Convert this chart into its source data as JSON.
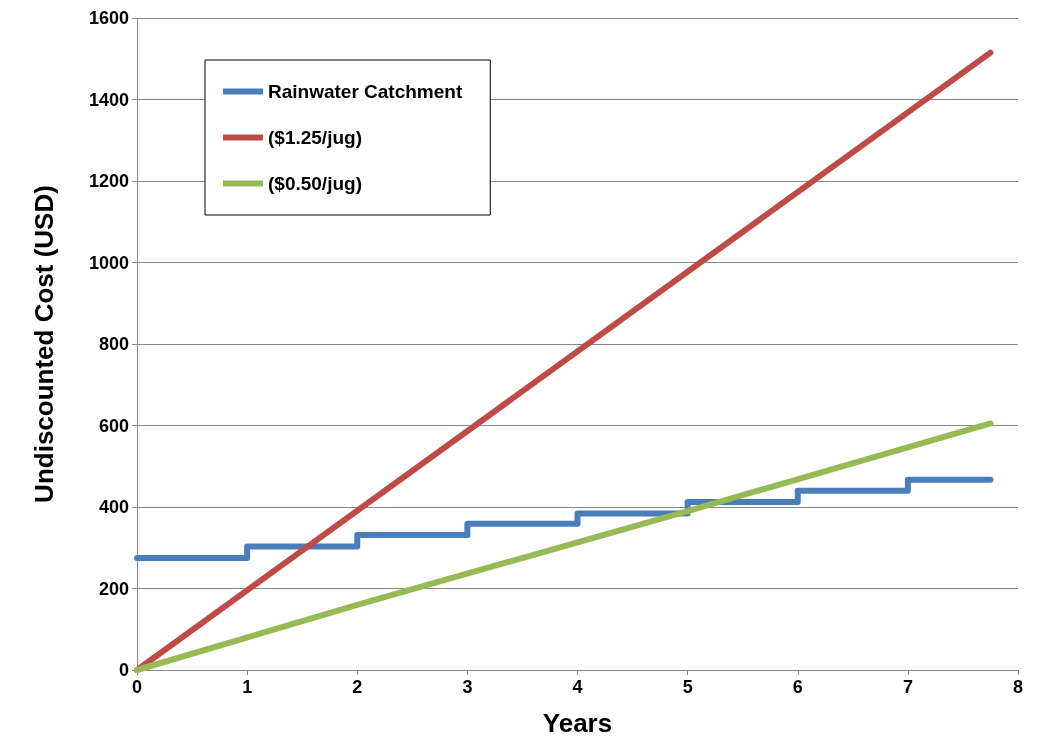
{
  "chart_data": {
    "type": "line",
    "xlabel": "Years",
    "ylabel": "Undiscounted Cost (USD)",
    "xlim": [
      0,
      8
    ],
    "xticks": [
      0,
      1,
      2,
      3,
      4,
      5,
      6,
      7,
      8
    ],
    "ylim": [
      0,
      1600
    ],
    "yticks": [
      0,
      200,
      400,
      600,
      800,
      1000,
      1200,
      1400,
      1600
    ],
    "grid": "y",
    "legend": "top left",
    "marker": "none",
    "line_style": "solid",
    "series": [
      {
        "name": "Rainwater Catchment",
        "type": "step",
        "color": "#4a7ebb",
        "x": [
          0,
          1,
          2,
          3,
          4,
          5,
          6,
          7,
          7.75
        ],
        "values": [
          275,
          303,
          331,
          359,
          384,
          412,
          440,
          467,
          467
        ]
      },
      {
        "name": "($1.25/jug)",
        "color": "#be4b48",
        "x": [
          0,
          7.75
        ],
        "values": [
          0,
          1515
        ]
      },
      {
        "name": "($0.50/jug)",
        "color": "#98b954",
        "x": [
          0,
          2,
          5,
          7.75
        ],
        "values": [
          0,
          160,
          390,
          605
        ]
      }
    ]
  }
}
